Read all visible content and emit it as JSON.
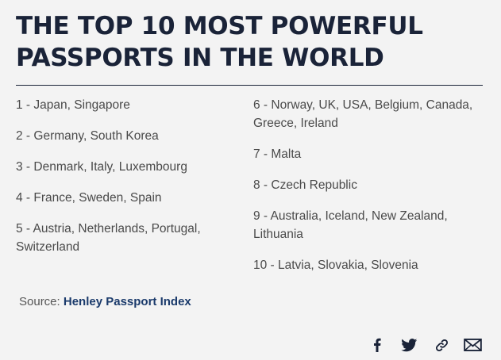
{
  "title": {
    "line1": "THE TOP 10 MOST POWERFUL",
    "line2": "PASSPORTS IN THE WORLD"
  },
  "rankings_left": [
    "1 - Japan, Singapore",
    "2 - Germany, South Korea",
    "3 - Denmark, Italy, Luxembourg",
    "4 - France, Sweden, Spain",
    "5 - Austria, Netherlands, Portugal, Switzerland"
  ],
  "rankings_right": [
    "6 - Norway, UK, USA,  Belgium, Canada, Greece, Ireland",
    "7 - Malta",
    "8 - Czech Republic",
    "9 - Australia, Iceland, New Zealand, Lithuania",
    "10 - Latvia, Slovakia, Slovenia"
  ],
  "source": {
    "prefix": "Source:",
    "name": "Henley Passport Index"
  },
  "share_icons": [
    "facebook-icon",
    "twitter-icon",
    "link-icon",
    "mail-icon"
  ],
  "colors": {
    "background": "#f3f3f3",
    "title": "#1a2338",
    "body_text": "#4a4a4a",
    "source_link": "#1a3a6b"
  }
}
